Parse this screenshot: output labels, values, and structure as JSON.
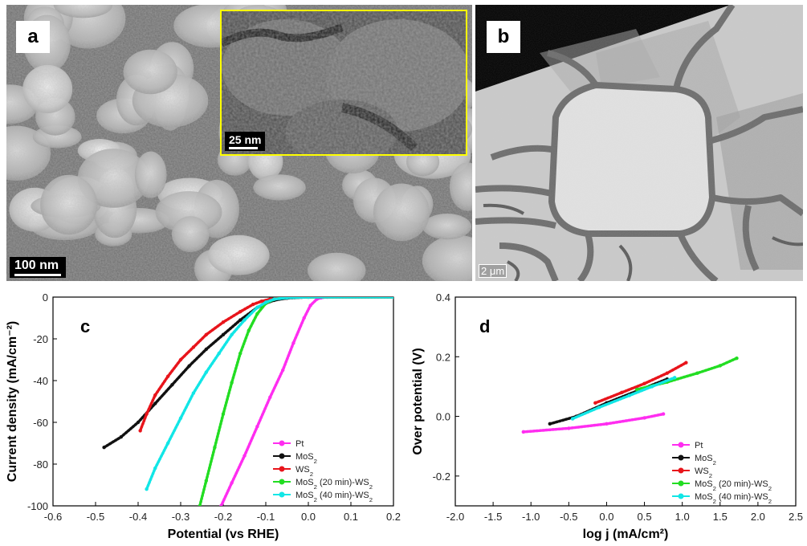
{
  "panel_a": {
    "letter": "a",
    "scale_label": "100 nm",
    "inset_scale_label": "25 nm"
  },
  "panel_b": {
    "letter": "b",
    "scale_label": "2 μm"
  },
  "colors": {
    "Pt": "#ff2df0",
    "MoS2": "#111111",
    "WS2": "#e8141b",
    "MoS2_20": "#22dd22",
    "MoS2_40": "#11e6e6",
    "inset_border": "#ffff00"
  },
  "chart_data": [
    {
      "type": "line",
      "panel": "c",
      "xlabel": "Potential (vs RHE)",
      "ylabel": "Current density (mA/cm⁻²)",
      "xlim": [
        -0.6,
        0.2
      ],
      "ylim": [
        -100,
        0
      ],
      "xticks": [
        "-0.6",
        "-0.5",
        "-0.4",
        "-0.3",
        "-0.2",
        "-0.1",
        "0.0",
        "0.1",
        "0.2"
      ],
      "yticks": [
        "0",
        "-20",
        "-40",
        "-60",
        "-80",
        "-100"
      ],
      "legend_position": "bottom-right",
      "series": [
        {
          "name": "Pt",
          "label_base": "Pt",
          "label_sub": "",
          "label_tail": "",
          "color_key": "Pt",
          "x": [
            -0.205,
            -0.18,
            -0.15,
            -0.12,
            -0.09,
            -0.06,
            -0.035,
            -0.01,
            0.005,
            0.02,
            0.03,
            0.045,
            0.2
          ],
          "y": [
            -100,
            -89,
            -76,
            -62,
            -48,
            -35,
            -22,
            -10,
            -4,
            -1,
            -0.3,
            0,
            0
          ]
        },
        {
          "name": "MoS2",
          "label_base": "MoS",
          "label_sub": "2",
          "label_tail": "",
          "color_key": "MoS2",
          "x": [
            -0.48,
            -0.44,
            -0.4,
            -0.36,
            -0.32,
            -0.28,
            -0.24,
            -0.2,
            -0.16,
            -0.12,
            -0.1,
            -0.08,
            -0.05,
            0.0,
            0.2
          ],
          "y": [
            -72,
            -67,
            -60,
            -51,
            -42,
            -33,
            -25,
            -18,
            -11,
            -5,
            -3,
            -1.5,
            -0.5,
            0,
            0
          ]
        },
        {
          "name": "WS2",
          "label_base": "WS",
          "label_sub": "2",
          "label_tail": "",
          "color_key": "WS2",
          "x": [
            -0.395,
            -0.38,
            -0.36,
            -0.33,
            -0.3,
            -0.27,
            -0.24,
            -0.2,
            -0.16,
            -0.13,
            -0.11,
            -0.09,
            -0.06,
            -0.02,
            0.2
          ],
          "y": [
            -64,
            -56,
            -47,
            -38,
            -30,
            -24,
            -18,
            -12,
            -7,
            -3.5,
            -2,
            -1,
            -0.3,
            0,
            0
          ]
        },
        {
          "name": "MoS2 (20 min)-WS2",
          "label_base": "MoS",
          "label_sub": "2",
          "label_tail": " (20 min)-WS",
          "label_sub2": "2",
          "color_key": "MoS2_20",
          "x": [
            -0.255,
            -0.24,
            -0.22,
            -0.2,
            -0.18,
            -0.16,
            -0.14,
            -0.12,
            -0.1,
            -0.08,
            -0.06,
            -0.03,
            0.2
          ],
          "y": [
            -100,
            -88,
            -72,
            -56,
            -41,
            -27,
            -16,
            -8,
            -3,
            -1,
            -0.3,
            0,
            0
          ]
        },
        {
          "name": "MoS2 (40 min)-WS2",
          "label_base": "MoS",
          "label_sub": "2",
          "label_tail": " (40 min)-WS",
          "label_sub2": "2",
          "color_key": "MoS2_40",
          "x": [
            -0.38,
            -0.36,
            -0.33,
            -0.3,
            -0.27,
            -0.24,
            -0.21,
            -0.18,
            -0.15,
            -0.12,
            -0.1,
            -0.08,
            -0.05,
            0.0,
            0.2
          ],
          "y": [
            -92,
            -82,
            -70,
            -58,
            -46,
            -36,
            -27,
            -18,
            -11,
            -5,
            -2.5,
            -1,
            -0.3,
            0,
            0
          ]
        }
      ]
    },
    {
      "type": "line",
      "panel": "d",
      "xlabel": "log j (mA/cm²)",
      "ylabel": "Over potential (V)",
      "xlim": [
        -2.0,
        2.5
      ],
      "ylim": [
        -0.3,
        0.4
      ],
      "xticks": [
        "-2.0",
        "-1.5",
        "-1.0",
        "-0.5",
        "0.0",
        "0.5",
        "1.0",
        "1.5",
        "2.0",
        "2.5"
      ],
      "yticks": [
        "0.4",
        "0.2",
        "0.0",
        "-0.2"
      ],
      "yticks_values": [
        0.4,
        0.2,
        0.0,
        -0.2
      ],
      "legend_position": "bottom-right",
      "series": [
        {
          "name": "Pt",
          "label_base": "Pt",
          "label_sub": "",
          "label_tail": "",
          "color_key": "Pt",
          "x": [
            -1.1,
            -0.5,
            0.0,
            0.5,
            0.75
          ],
          "y": [
            -0.052,
            -0.04,
            -0.025,
            -0.005,
            0.008
          ]
        },
        {
          "name": "MoS2",
          "label_base": "MoS",
          "label_sub": "2",
          "label_tail": "",
          "color_key": "MoS2",
          "x": [
            -0.75,
            -0.4,
            0.0,
            0.4,
            0.8
          ],
          "y": [
            -0.025,
            0.0,
            0.045,
            0.085,
            0.125
          ]
        },
        {
          "name": "WS2",
          "label_base": "WS",
          "label_sub": "2",
          "label_tail": "",
          "color_key": "WS2",
          "x": [
            -0.15,
            0.2,
            0.5,
            0.8,
            1.05
          ],
          "y": [
            0.045,
            0.08,
            0.11,
            0.145,
            0.18
          ]
        },
        {
          "name": "MoS2 (20 min)-WS2",
          "label_base": "MoS",
          "label_sub": "2",
          "label_tail": " (20 min)-WS",
          "label_sub2": "2",
          "color_key": "MoS2_20",
          "x": [
            0.4,
            0.8,
            1.2,
            1.5,
            1.72
          ],
          "y": [
            0.09,
            0.115,
            0.145,
            0.17,
            0.195
          ]
        },
        {
          "name": "MoS2 (40 min)-WS2",
          "label_base": "MoS",
          "label_sub": "2",
          "label_tail": " (40 min)-WS",
          "label_sub2": "2",
          "color_key": "MoS2_40",
          "x": [
            -0.45,
            -0.1,
            0.3,
            0.6,
            0.9
          ],
          "y": [
            -0.008,
            0.03,
            0.07,
            0.1,
            0.13
          ]
        }
      ]
    }
  ],
  "chart_letters": {
    "c": "c",
    "d": "d"
  }
}
